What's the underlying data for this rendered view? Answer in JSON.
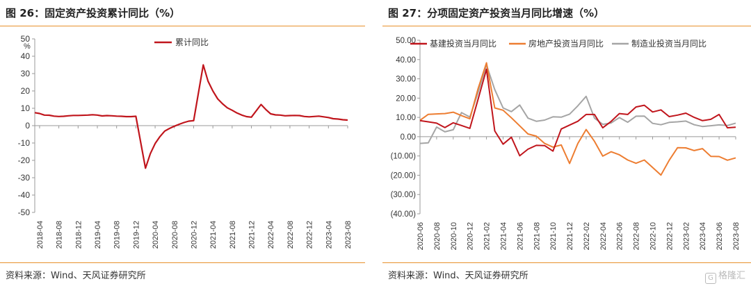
{
  "left": {
    "title": "图 26：固定资产投资累计同比（%）",
    "source": "资料来源：Wind、天风证券研究所"
  },
  "right": {
    "title": "图 27：分项固定资产投资当月同比增速（%）",
    "source": "资料来源：Wind、天风证券研究所"
  },
  "watermark": {
    "icon_char": "G",
    "text": "格隆汇"
  },
  "chart_data": [
    {
      "type": "line",
      "title": "",
      "ylabel": "%",
      "ylim": [
        -50,
        50
      ],
      "yticks": [
        -50,
        -40,
        -30,
        -20,
        -10,
        0,
        10,
        20,
        30,
        40,
        50
      ],
      "ytick_labels": [
        "-50",
        "-40",
        "-30",
        "-20",
        "-10",
        "0",
        "10",
        "20",
        "30",
        "40",
        "50"
      ],
      "xtick_labels": [
        "2018-04",
        "2018-08",
        "2018-12",
        "2019-04",
        "2019-08",
        "2019-12",
        "2020-04",
        "2020-08",
        "2020-12",
        "2021-04",
        "2021-08",
        "2021-12",
        "2022-04",
        "2022-08",
        "2022-12",
        "2023-04",
        "2023-08"
      ],
      "grid": false,
      "legend_position": "top-center",
      "series": [
        {
          "name": "累计同比",
          "color": "#c0151c",
          "x": [
            "2018-03",
            "2018-04",
            "2018-05",
            "2018-06",
            "2018-07",
            "2018-08",
            "2018-09",
            "2018-10",
            "2018-11",
            "2018-12",
            "2019-02",
            "2019-03",
            "2019-04",
            "2019-05",
            "2019-06",
            "2019-07",
            "2019-08",
            "2019-09",
            "2019-10",
            "2019-11",
            "2019-12",
            "2020-02",
            "2020-03",
            "2020-04",
            "2020-05",
            "2020-06",
            "2020-07",
            "2020-08",
            "2020-09",
            "2020-10",
            "2020-11",
            "2020-12",
            "2021-02",
            "2021-03",
            "2021-04",
            "2021-05",
            "2021-06",
            "2021-07",
            "2021-08",
            "2021-09",
            "2021-10",
            "2021-11",
            "2021-12",
            "2022-02",
            "2022-03",
            "2022-04",
            "2022-05",
            "2022-06",
            "2022-07",
            "2022-08",
            "2022-09",
            "2022-10",
            "2022-11",
            "2022-12",
            "2023-02",
            "2023-03",
            "2023-04",
            "2023-05",
            "2023-06",
            "2023-07",
            "2023-08"
          ],
          "values": [
            7.5,
            7.0,
            6.1,
            6.0,
            5.5,
            5.3,
            5.4,
            5.7,
            5.9,
            5.9,
            6.1,
            6.3,
            6.1,
            5.6,
            5.8,
            5.7,
            5.5,
            5.4,
            5.2,
            5.2,
            5.4,
            -24.5,
            -16.1,
            -10.3,
            -6.3,
            -3.1,
            -1.6,
            -0.3,
            0.8,
            1.8,
            2.6,
            2.9,
            35.0,
            25.6,
            19.9,
            15.4,
            12.6,
            10.3,
            8.9,
            7.3,
            6.1,
            5.2,
            4.9,
            12.2,
            9.3,
            6.8,
            6.2,
            6.1,
            5.7,
            5.8,
            5.9,
            5.8,
            5.3,
            5.1,
            5.5,
            5.1,
            4.7,
            4.0,
            3.8,
            3.4,
            3.2
          ]
        }
      ]
    },
    {
      "type": "line",
      "title": "",
      "ylim": [
        -40,
        50
      ],
      "yticks": [
        -40,
        -30,
        -20,
        -10,
        0,
        10,
        20,
        30,
        40,
        50
      ],
      "ytick_labels": [
        "(40.00)",
        "(30.00)",
        "(20.00)",
        "(10.00)",
        "0.00",
        "10.00",
        "20.00",
        "30.00",
        "40.00",
        "50.00"
      ],
      "xtick_labels": [
        "2020-06",
        "2020-08",
        "2020-10",
        "2020-12",
        "2021-02",
        "2021-04",
        "2021-06",
        "2021-08",
        "2021-10",
        "2021-12",
        "2022-02",
        "2022-04",
        "2022-06",
        "2022-08",
        "2022-10",
        "2022-12",
        "2023-02",
        "2023-04",
        "2023-06",
        "2023-08"
      ],
      "grid": false,
      "legend_position": "top",
      "x": [
        "2020-06",
        "2020-07",
        "2020-08",
        "2020-09",
        "2020-10",
        "2020-11",
        "2020-12",
        "2021-01",
        "2021-02",
        "2021-03",
        "2021-04",
        "2021-05",
        "2021-06",
        "2021-07",
        "2021-08",
        "2021-09",
        "2021-10",
        "2021-11",
        "2021-12",
        "2022-01",
        "2022-02",
        "2022-03",
        "2022-04",
        "2022-05",
        "2022-06",
        "2022-07",
        "2022-08",
        "2022-09",
        "2022-10",
        "2022-11",
        "2022-12",
        "2023-01",
        "2023-02",
        "2023-03",
        "2023-04",
        "2023-05",
        "2023-06",
        "2023-07",
        "2023-08"
      ],
      "series": [
        {
          "name": "基建投资当月同比",
          "color": "#c0151c",
          "values": [
            8.3,
            7.7,
            7.0,
            4.7,
            7.2,
            5.8,
            4.3,
            19.5,
            35.0,
            3.0,
            -3.9,
            -0.3,
            -9.9,
            -6.5,
            -4.5,
            -4.6,
            -7.5,
            4.0,
            6.0,
            8.0,
            11.5,
            11.5,
            4.6,
            7.9,
            12.0,
            11.5,
            15.4,
            16.3,
            12.8,
            13.9,
            10.4,
            11.2,
            12.2,
            10.0,
            8.3,
            9.0,
            11.5,
            4.6,
            4.9
          ]
        },
        {
          "name": "房地产投资当月同比",
          "color": "#ed7d31",
          "values": [
            8.5,
            11.6,
            11.8,
            12.0,
            12.7,
            10.9,
            9.3,
            25.0,
            38.3,
            14.9,
            13.7,
            9.8,
            5.6,
            1.4,
            0.3,
            -3.5,
            -5.4,
            -4.3,
            -13.9,
            -3.5,
            3.7,
            -2.4,
            -10.1,
            -7.8,
            -9.4,
            -12.1,
            -13.8,
            -12.1,
            -16.0,
            -19.9,
            -12.2,
            -5.7,
            -5.8,
            -7.2,
            -6.2,
            -10.2,
            -10.3,
            -12.2,
            -11.0
          ]
        },
        {
          "name": "制造业投资当月同比",
          "color": "#a5a5a5",
          "values": [
            -3.5,
            -3.2,
            5.0,
            2.5,
            3.6,
            12.5,
            10.2,
            23.0,
            37.3,
            24.4,
            14.9,
            13.0,
            16.4,
            9.6,
            8.0,
            8.6,
            10.3,
            10.1,
            11.7,
            16.0,
            20.9,
            9.6,
            6.4,
            7.1,
            9.9,
            7.5,
            10.6,
            10.7,
            6.9,
            6.2,
            7.4,
            7.7,
            8.1,
            6.2,
            5.3,
            5.7,
            6.1,
            5.8,
            7.0
          ]
        }
      ]
    }
  ]
}
